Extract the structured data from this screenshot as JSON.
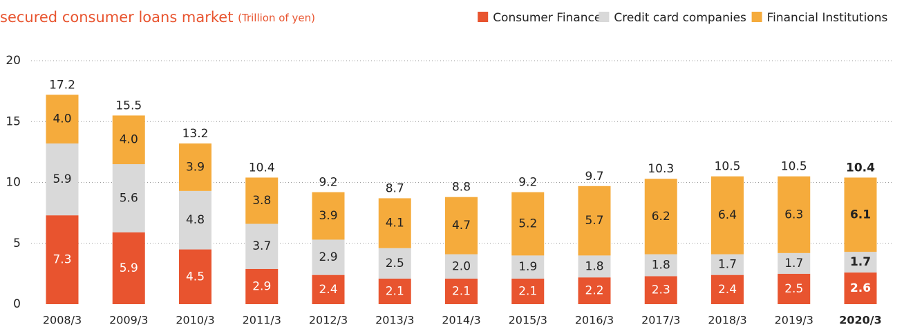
{
  "chart_data": {
    "type": "stacked-bar",
    "title": "secured consumer loans market",
    "subtitle": "(Trillion of yen)",
    "categories": [
      "2008/3",
      "2009/3",
      "2010/3",
      "2011/3",
      "2012/3",
      "2013/3",
      "2014/3",
      "2015/3",
      "2016/3",
      "2017/3",
      "2018/3",
      "2019/3",
      "2020/3"
    ],
    "series": [
      {
        "name": "Consumer Finance",
        "color": "#e8542f",
        "values": [
          7.3,
          5.9,
          4.5,
          2.9,
          2.4,
          2.1,
          2.1,
          2.1,
          2.2,
          2.3,
          2.4,
          2.5,
          2.6
        ]
      },
      {
        "name": "Credit card companies",
        "color": "#d9d9d9",
        "values": [
          5.9,
          5.6,
          4.8,
          3.7,
          2.9,
          2.5,
          2.0,
          1.9,
          1.8,
          1.8,
          1.7,
          1.7,
          1.7
        ],
        "value_labels": [
          "5.9",
          "5.6",
          "4.8",
          "3.7",
          "2.9",
          "2.5",
          "2.0",
          "1.9",
          "1.8",
          "1.8",
          "1.7",
          "1.7",
          "1.7"
        ]
      },
      {
        "name": "Financial Institutions",
        "color": "#f5ab3c",
        "values": [
          4,
          4,
          3.9,
          3.8,
          3.9,
          4.1,
          4.7,
          5.2,
          5.7,
          6.2,
          6.4,
          6.3,
          6.1
        ],
        "value_labels": [
          "4.0",
          "4.0",
          "3.9",
          "3.8",
          "3.9",
          "4.1",
          "4.7",
          "5.2",
          "5.7",
          "6.2",
          "6.4",
          "6.3",
          "6.1"
        ]
      }
    ],
    "totals": [
      17.2,
      15.5,
      13.2,
      10.4,
      9.2,
      8.7,
      8.8,
      9.2,
      9.7,
      10.3,
      10.5,
      10.5,
      10.4
    ],
    "ylim": [
      0,
      20
    ],
    "yticks": [
      0,
      5,
      10,
      15,
      20
    ],
    "grid": true,
    "legend": "top-right"
  }
}
